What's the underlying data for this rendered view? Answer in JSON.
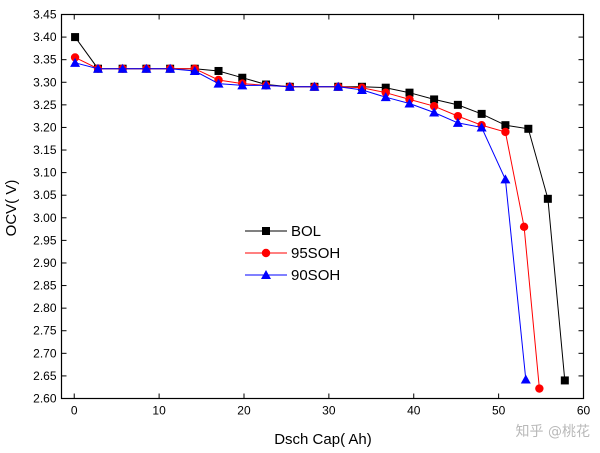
{
  "chart_data": {
    "type": "line",
    "title": "",
    "xlabel": "Dsch Cap( Ah)",
    "ylabel": "OCV( V)",
    "xlim": [
      -1.5,
      60
    ],
    "ylim": [
      2.6,
      3.45
    ],
    "xticks": [
      0,
      10,
      20,
      30,
      40,
      50,
      60
    ],
    "yticks": [
      2.6,
      2.65,
      2.7,
      2.75,
      2.8,
      2.85,
      2.9,
      2.95,
      3.0,
      3.05,
      3.1,
      3.15,
      3.2,
      3.25,
      3.3,
      3.35,
      3.4,
      3.45
    ],
    "grid": false,
    "legend_position": "center-left",
    "series": [
      {
        "name": "BOL",
        "color": "#000000",
        "marker": "square",
        "x": [
          0.1,
          2.8,
          5.7,
          8.5,
          11.3,
          14.2,
          17.0,
          19.8,
          22.6,
          25.4,
          28.3,
          31.1,
          33.9,
          36.7,
          39.5,
          42.4,
          45.2,
          48.0,
          50.8,
          53.5,
          55.8,
          57.8
        ],
        "y": [
          3.4,
          3.33,
          3.33,
          3.33,
          3.33,
          3.33,
          3.325,
          3.31,
          3.295,
          3.29,
          3.29,
          3.29,
          3.29,
          3.288,
          3.277,
          3.262,
          3.25,
          3.23,
          3.205,
          3.197,
          3.042,
          2.64
        ]
      },
      {
        "name": "95SOH",
        "color": "#ff0000",
        "marker": "circle",
        "x": [
          0.1,
          2.8,
          5.7,
          8.5,
          11.3,
          14.2,
          17.0,
          19.8,
          22.6,
          25.4,
          28.3,
          31.1,
          33.9,
          36.7,
          39.5,
          42.4,
          45.2,
          48.0,
          50.8,
          53.0,
          54.8
        ],
        "y": [
          3.355,
          3.33,
          3.33,
          3.33,
          3.33,
          3.33,
          3.305,
          3.297,
          3.293,
          3.29,
          3.29,
          3.29,
          3.288,
          3.277,
          3.262,
          3.247,
          3.225,
          3.205,
          3.19,
          2.98,
          2.622
        ]
      },
      {
        "name": "90SOH",
        "color": "#0000ff",
        "marker": "triangle",
        "x": [
          0.1,
          2.8,
          5.7,
          8.5,
          11.3,
          14.2,
          17.0,
          19.8,
          22.6,
          25.4,
          28.3,
          31.1,
          33.9,
          36.7,
          39.5,
          42.4,
          45.2,
          48.0,
          50.8,
          53.2
        ],
        "y": [
          3.343,
          3.33,
          3.33,
          3.33,
          3.33,
          3.325,
          3.297,
          3.293,
          3.293,
          3.29,
          3.29,
          3.29,
          3.283,
          3.267,
          3.253,
          3.233,
          3.21,
          3.2,
          3.085,
          2.642
        ]
      }
    ]
  },
  "watermark": "知乎 @桃花"
}
